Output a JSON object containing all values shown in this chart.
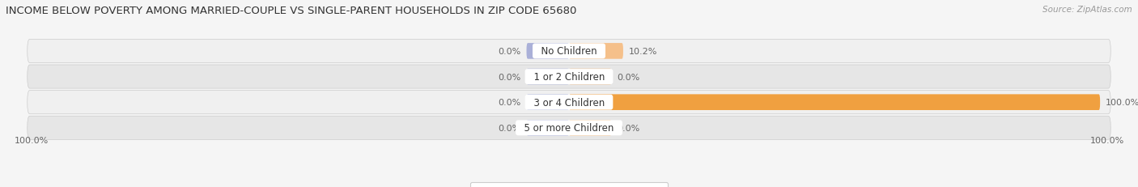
{
  "title": "INCOME BELOW POVERTY AMONG MARRIED-COUPLE VS SINGLE-PARENT HOUSEHOLDS IN ZIP CODE 65680",
  "source": "Source: ZipAtlas.com",
  "categories": [
    "No Children",
    "1 or 2 Children",
    "3 or 4 Children",
    "5 or more Children"
  ],
  "married_values": [
    0.0,
    0.0,
    0.0,
    0.0
  ],
  "single_values": [
    10.2,
    0.0,
    100.0,
    0.0
  ],
  "married_color": "#aab0d8",
  "single_color": "#f5c08a",
  "single_color_full": "#f0a040",
  "row_bg_light": "#f0f0f0",
  "row_bg_dark": "#e6e6e6",
  "title_fontsize": 9.5,
  "source_fontsize": 7.5,
  "label_fontsize": 8,
  "category_fontsize": 8.5,
  "legend_fontsize": 8,
  "axis_label_left": "100.0%",
  "axis_label_right": "100.0%",
  "max_value": 100.0,
  "bar_height": 0.62,
  "married_stub": 8.0,
  "single_stub": 8.0
}
